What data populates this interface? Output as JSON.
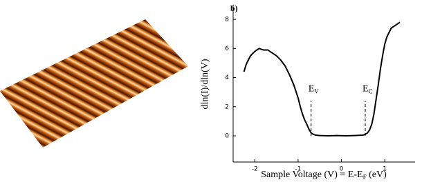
{
  "panel_label": "b)",
  "chart_data": {
    "type": "line",
    "ylabel": "dln(I)/dln(V)",
    "xlabel_parts": [
      "Sample Voltage (V) = E-E",
      "F",
      " (eV)"
    ],
    "x": [
      -2.25,
      -2.2,
      -2.1,
      -2.0,
      -1.9,
      -1.8,
      -1.7,
      -1.6,
      -1.5,
      -1.4,
      -1.3,
      -1.2,
      -1.1,
      -1.0,
      -0.95,
      -0.9,
      -0.85,
      -0.8,
      -0.75,
      -0.7,
      -0.65,
      -0.6,
      -0.5,
      -0.3,
      -0.1,
      0.1,
      0.3,
      0.5,
      0.55,
      0.6,
      0.65,
      0.7,
      0.75,
      0.8,
      0.85,
      0.9,
      0.95,
      1.0,
      1.05,
      1.1,
      1.15,
      1.2,
      1.25,
      1.3,
      1.35
    ],
    "values": [
      4.4,
      4.9,
      5.5,
      5.8,
      6.0,
      5.9,
      5.9,
      5.7,
      5.5,
      5.2,
      4.8,
      4.2,
      3.5,
      2.6,
      2.0,
      1.5,
      1.1,
      0.8,
      0.45,
      0.2,
      0.1,
      0.05,
      0.02,
      0.0,
      0.02,
      0.0,
      0.02,
      0.05,
      0.1,
      0.2,
      0.4,
      0.8,
      1.5,
      2.5,
      3.5,
      4.6,
      5.5,
      6.3,
      6.8,
      7.1,
      7.4,
      7.5,
      7.6,
      7.7,
      7.8
    ],
    "color": "#000000",
    "xlim": [
      -2.5,
      1.7
    ],
    "xticks": [
      -2,
      -1,
      0,
      1
    ],
    "ylim": [
      -1.8,
      9
    ],
    "yticks": [
      0,
      2,
      4,
      6,
      8
    ],
    "markers": [
      {
        "x": -0.7,
        "text": "E",
        "sub": "V"
      },
      {
        "x": 0.55,
        "text": "E",
        "sub": "C"
      }
    ]
  }
}
